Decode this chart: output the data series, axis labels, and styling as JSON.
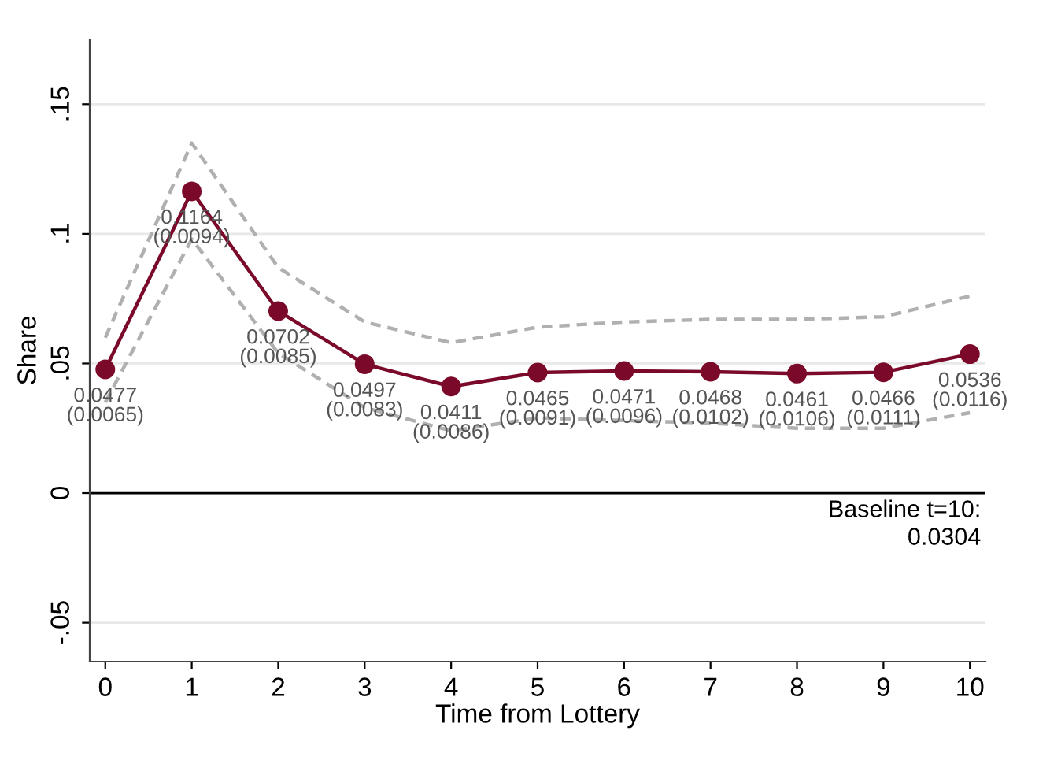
{
  "chart_data": {
    "type": "line",
    "xlabel": "Time from Lottery",
    "ylabel": "Share",
    "x": [
      0,
      1,
      2,
      3,
      4,
      5,
      6,
      7,
      8,
      9,
      10
    ],
    "series": [
      {
        "color": "#b0b0b0",
        "line_style": "dashed",
        "marker": "none",
        "values": [
          0.06,
          0.135,
          0.087,
          0.066,
          0.058,
          0.064,
          0.066,
          0.067,
          0.067,
          0.068,
          0.076
        ]
      },
      {
        "color": "#b0b0b0",
        "line_style": "dashed",
        "marker": "none",
        "values": [
          0.035,
          0.098,
          0.054,
          0.033,
          0.024,
          0.029,
          0.028,
          0.027,
          0.025,
          0.025,
          0.031
        ]
      },
      {
        "color": "#7b0a2a",
        "line_style": "solid",
        "marker": "circle",
        "values": [
          0.0477,
          0.1164,
          0.0702,
          0.0497,
          0.0411,
          0.0465,
          0.0471,
          0.0468,
          0.0461,
          0.0466,
          0.0536
        ],
        "value_labels": [
          "0.0477\n(0.0065)",
          "0.1164\n(0.0094)",
          "0.0702\n(0.0085)",
          "0.0497\n(0.0083)",
          "0.0411\n(0.0086)",
          "0.0465\n(0.0091)",
          "0.0471\n(0.0096)",
          "0.0468\n(0.0102)",
          "0.0461\n(0.0106)",
          "0.0466\n(0.0111)",
          "0.0536\n(0.0116)"
        ]
      }
    ],
    "xlim": [
      -0.18,
      10.18
    ],
    "xticks": [
      0,
      1,
      2,
      3,
      4,
      5,
      6,
      7,
      8,
      9,
      10
    ],
    "ylim": [
      -0.065,
      0.175
    ],
    "yticks": [
      {
        "value": -0.05,
        "label": "-.05"
      },
      0,
      {
        "value": 0.05,
        "label": ".05"
      },
      {
        "value": 0.1,
        "label": ".1"
      },
      {
        "value": 0.15,
        "label": ".15"
      }
    ],
    "grid": "y",
    "ref_lines": [
      {
        "axis": "y",
        "value": 0,
        "color": "#000000"
      }
    ],
    "annotations": [
      "Baseline t=10:\n0.0304"
    ],
    "legend": false
  }
}
